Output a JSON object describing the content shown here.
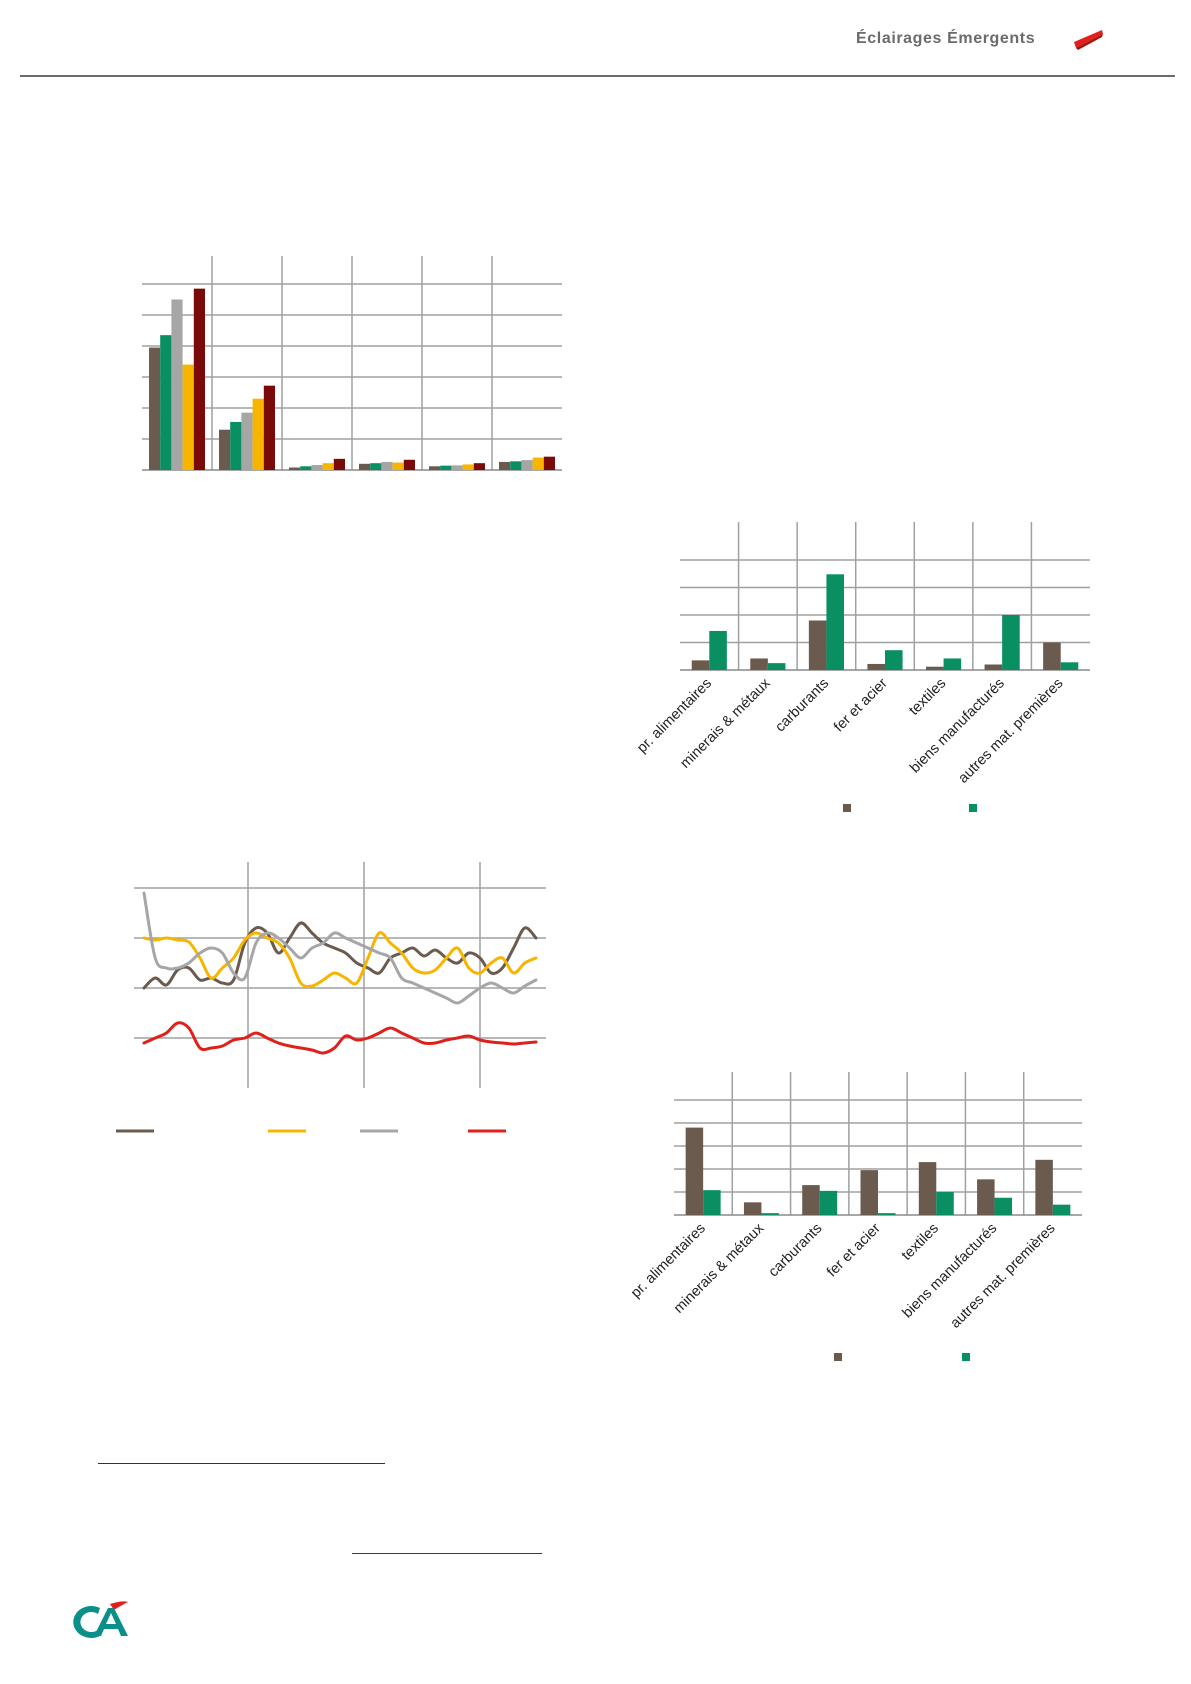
{
  "header": {
    "title": "Éclairages Émergents",
    "accent_color": "#e0201b",
    "rule_color": "#6b6b6b"
  },
  "chart_data": [
    {
      "type": "bar",
      "categories": [
        "",
        "",
        "",
        "",
        "",
        ""
      ],
      "series": [
        {
          "color": "#6b5a4e",
          "values": [
            3.95,
            1.3,
            0.08,
            0.2,
            0.12,
            0.26
          ]
        },
        {
          "color": "#0a8f63",
          "values": [
            4.35,
            1.55,
            0.12,
            0.22,
            0.14,
            0.28
          ]
        },
        {
          "color": "#a6a6a6",
          "values": [
            5.5,
            1.85,
            0.16,
            0.26,
            0.15,
            0.32
          ]
        },
        {
          "color": "#f7b500",
          "values": [
            3.4,
            2.3,
            0.22,
            0.24,
            0.18,
            0.4
          ]
        },
        {
          "color": "#7a0a0a",
          "values": [
            5.85,
            2.72,
            0.36,
            0.33,
            0.22,
            0.43
          ]
        }
      ],
      "ylim": [
        0,
        6
      ],
      "grid": true,
      "legend": "none"
    },
    {
      "type": "bar",
      "categories": [
        "pr. alimentaires",
        "minerais & métaux",
        "carburants",
        "fer et acier",
        "textiles",
        "biens manufacturés",
        "autres mat. premières"
      ],
      "series": [
        {
          "color": "#6b5a4e",
          "values": [
            0.35,
            0.42,
            1.8,
            0.22,
            0.12,
            0.2,
            1.0
          ]
        },
        {
          "color": "#0a8f63",
          "values": [
            1.42,
            0.25,
            3.48,
            0.72,
            0.42,
            2.0,
            0.28
          ]
        }
      ],
      "ylim": [
        0,
        4
      ],
      "grid": true,
      "legend": "bottom"
    },
    {
      "type": "line",
      "x": [
        0,
        1,
        2,
        3,
        4,
        5,
        6,
        7,
        8,
        9,
        10,
        11,
        12,
        13,
        14,
        15,
        16,
        17,
        18,
        19,
        20,
        21,
        22,
        23,
        24,
        25,
        26,
        27,
        28,
        29,
        30,
        31,
        32,
        33,
        34,
        35
      ],
      "series": [
        {
          "color": "#6b5a4e",
          "values": [
            0.9,
            1.0,
            0.93,
            1.08,
            1.1,
            0.98,
            1.0,
            0.95,
            0.98,
            1.35,
            1.5,
            1.45,
            1.25,
            1.4,
            1.55,
            1.45,
            1.35,
            1.3,
            1.25,
            1.15,
            1.1,
            1.05,
            1.2,
            1.25,
            1.3,
            1.22,
            1.28,
            1.2,
            1.15,
            1.25,
            1.2,
            1.05,
            1.1,
            1.3,
            1.5,
            1.4
          ]
        },
        {
          "color": "#f7b500",
          "values": [
            1.4,
            1.38,
            1.4,
            1.38,
            1.36,
            1.2,
            1.0,
            1.1,
            1.2,
            1.38,
            1.45,
            1.4,
            1.35,
            1.2,
            0.95,
            0.92,
            0.98,
            1.05,
            1.0,
            0.95,
            1.2,
            1.45,
            1.35,
            1.25,
            1.1,
            1.05,
            1.08,
            1.2,
            1.3,
            1.1,
            1.05,
            1.15,
            1.2,
            1.05,
            1.15,
            1.2
          ]
        },
        {
          "color": "#a6a6a6",
          "values": [
            1.85,
            1.2,
            1.1,
            1.1,
            1.15,
            1.25,
            1.3,
            1.25,
            1.05,
            1.0,
            1.35,
            1.45,
            1.4,
            1.3,
            1.2,
            1.3,
            1.35,
            1.45,
            1.4,
            1.35,
            1.3,
            1.25,
            1.2,
            1.0,
            0.95,
            0.9,
            0.85,
            0.8,
            0.75,
            0.82,
            0.9,
            0.95,
            0.9,
            0.85,
            0.92,
            0.98
          ]
        },
        {
          "color": "#e0201b",
          "values": [
            0.35,
            0.4,
            0.45,
            0.55,
            0.5,
            0.3,
            0.3,
            0.32,
            0.38,
            0.4,
            0.45,
            0.4,
            0.35,
            0.32,
            0.3,
            0.28,
            0.25,
            0.3,
            0.42,
            0.38,
            0.4,
            0.45,
            0.5,
            0.45,
            0.4,
            0.35,
            0.35,
            0.38,
            0.4,
            0.42,
            0.38,
            0.36,
            0.35,
            0.34,
            0.35,
            0.36
          ]
        }
      ],
      "ylim": [
        -0.1,
        1.9
      ],
      "grid": true,
      "legend": "bottom"
    },
    {
      "type": "bar",
      "categories": [
        "pr. alimentaires",
        "minerais & métaux",
        "carburants",
        "fer et acier",
        "textiles",
        "biens manufacturés",
        "autres mat. premières"
      ],
      "series": [
        {
          "color": "#6b5a4e",
          "values": [
            3.8,
            0.55,
            1.3,
            1.95,
            2.3,
            1.55,
            2.4
          ]
        },
        {
          "color": "#0a8f63",
          "values": [
            1.08,
            0.08,
            1.05,
            0.08,
            1.0,
            0.75,
            0.45
          ]
        }
      ],
      "ylim": [
        0,
        5
      ],
      "grid": true,
      "legend": "bottom"
    }
  ]
}
